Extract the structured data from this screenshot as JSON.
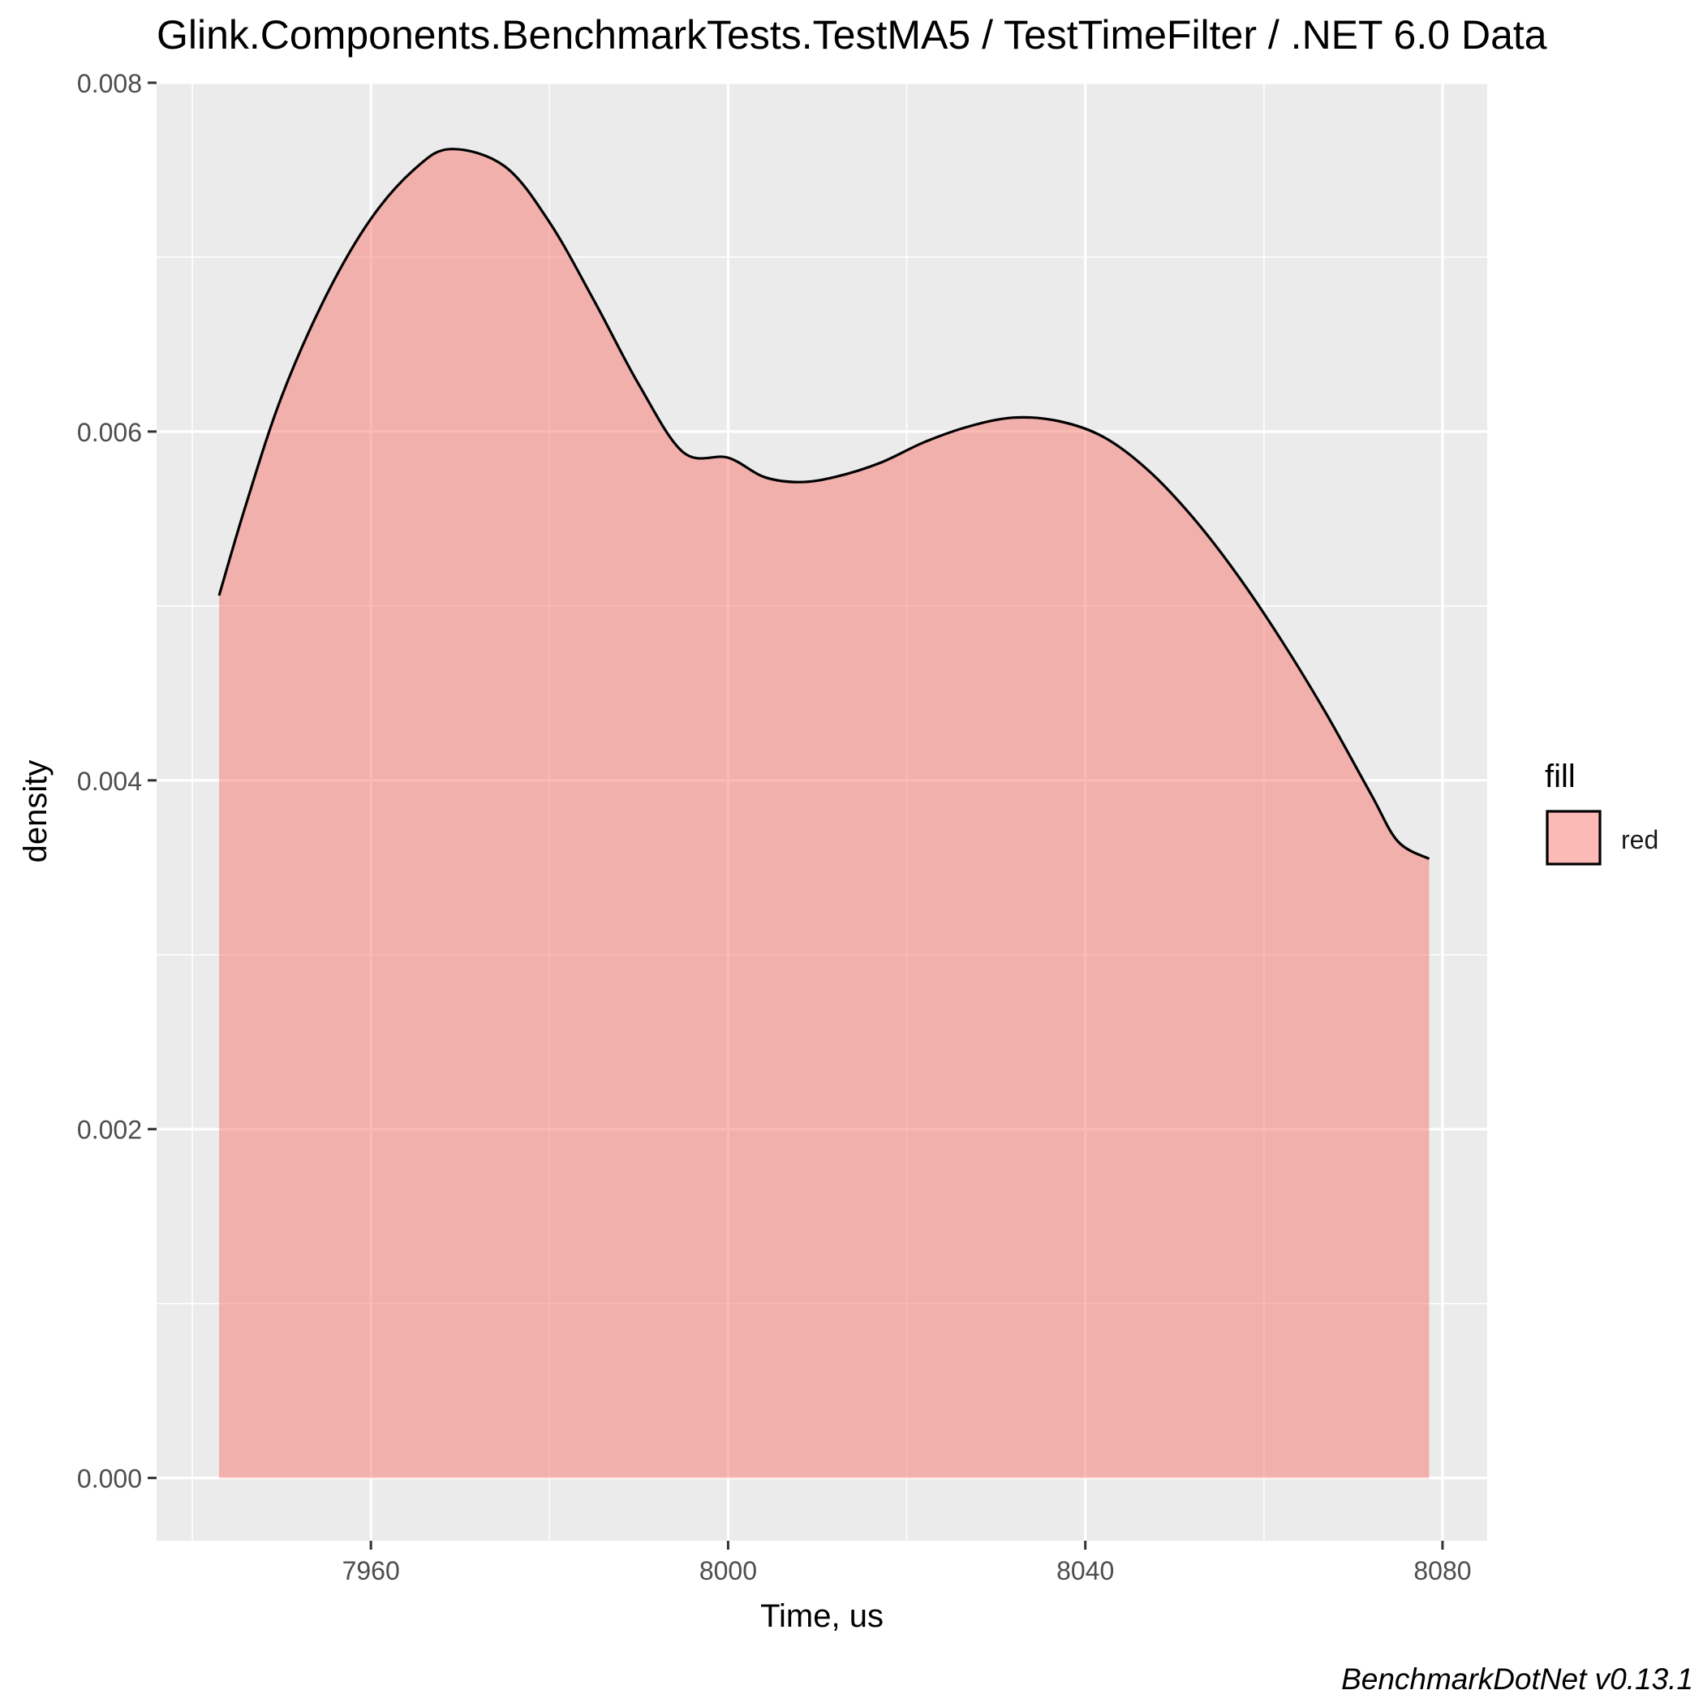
{
  "chart_data": {
    "type": "area",
    "title": "Glink.Components.BenchmarkTests.TestMA5 / TestTimeFilter / .NET 6.0 Data",
    "xlabel": "Time, us",
    "ylabel": "density",
    "caption": "BenchmarkDotNet v0.13.1",
    "xlim": [
      7936,
      8085
    ],
    "ylim": [
      -0.00036,
      0.008
    ],
    "x_ticks": [
      7960,
      8000,
      8040,
      8080
    ],
    "x_tick_labels": [
      "7960",
      "8000",
      "8040",
      "8080"
    ],
    "y_ticks": [
      0,
      0.002,
      0.004,
      0.006,
      0.008
    ],
    "y_tick_labels": [
      "0.000",
      "0.002",
      "0.004",
      "0.006",
      "0.008"
    ],
    "grid": true,
    "legend": {
      "title": "fill",
      "placement": "right",
      "entries": [
        {
          "label": "red",
          "color": "#F8766D"
        }
      ]
    },
    "fill_color": "#F8766D",
    "fill_opacity": 0.5,
    "line_color": "#000000",
    "panel_color": "#EBEBEB",
    "series": [
      {
        "x": [
          7943,
          7946,
          7950,
          7955,
          7960,
          7965,
          7969,
          7975,
          7980,
          7985,
          7990,
          7995,
          8000,
          8004,
          8008,
          8012,
          8017,
          8022,
          8027,
          8032,
          8037,
          8042,
          8047,
          8052,
          8057,
          8062,
          8067,
          8072,
          8075,
          8078.5
        ],
        "values": [
          0.00506,
          0.00558,
          0.0062,
          0.00678,
          0.00722,
          0.00751,
          0.00762,
          0.00752,
          0.0072,
          0.00675,
          0.00627,
          0.00588,
          0.00585,
          0.00574,
          0.00571,
          0.00574,
          0.00582,
          0.00594,
          0.00603,
          0.00608,
          0.00606,
          0.00597,
          0.00578,
          0.00551,
          0.00518,
          0.0048,
          0.00438,
          0.00392,
          0.00365,
          0.00355
        ]
      }
    ]
  }
}
